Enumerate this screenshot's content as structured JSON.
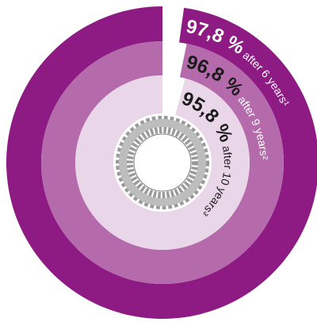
{
  "chart_data": {
    "type": "radial_bar",
    "ylim": [
      0,
      100
    ],
    "series": [
      {
        "values": [
          97.8
        ],
        "value_labels": [
          "97,8 %"
        ],
        "name": "after 6 years¹",
        "color": "#8e1a83",
        "text_color": "#ffffff",
        "name_color": "#ffffff"
      },
      {
        "values": [
          96.8
        ],
        "value_labels": [
          "96,8 %"
        ],
        "name": "after 9 years²",
        "color": "#b46aab",
        "text_color": "#1a1a1a",
        "name_color": "#ffffff"
      },
      {
        "values": [
          95.8
        ],
        "value_labels": [
          "95,8 %"
        ],
        "name": "after 10 years³",
        "color": "#e9d6e8",
        "text_color": "#1a1a1a",
        "name_color": "#1a1a1a"
      }
    ]
  }
}
